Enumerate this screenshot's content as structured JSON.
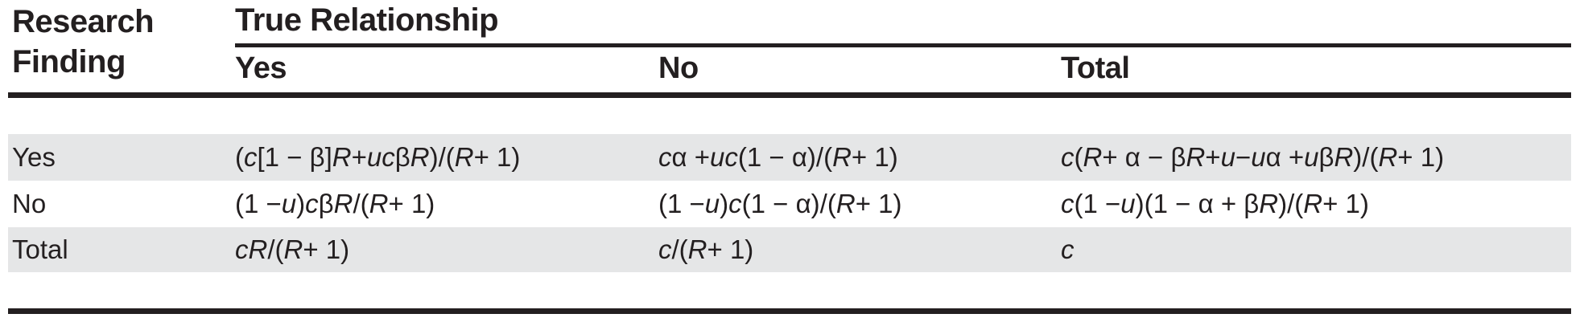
{
  "table": {
    "stub_header": "Research Finding",
    "group_header": "True Relationship",
    "columns": [
      "Yes",
      "No",
      "Total"
    ],
    "rows": [
      {
        "label": "Yes",
        "cells": [
          "(c[1 − β]R + ucβR)/(R + 1)",
          "cα + uc(1 − α)/(R + 1)",
          "c(R + α − βR + u − uα + uβR)/(R + 1)"
        ]
      },
      {
        "label": "No",
        "cells": [
          "(1 − u)cβR/(R + 1)",
          "(1 − u)c(1 − α)/(R + 1)",
          "c(1 − u)(1 − α + βR)/(R + 1)"
        ]
      },
      {
        "label": "Total",
        "cells": [
          "cR/(R + 1)",
          "c/(R + 1)",
          "c"
        ]
      }
    ]
  },
  "colors": {
    "ink": "#231f20",
    "row_shade": "#e5e6e7",
    "background": "#ffffff"
  }
}
